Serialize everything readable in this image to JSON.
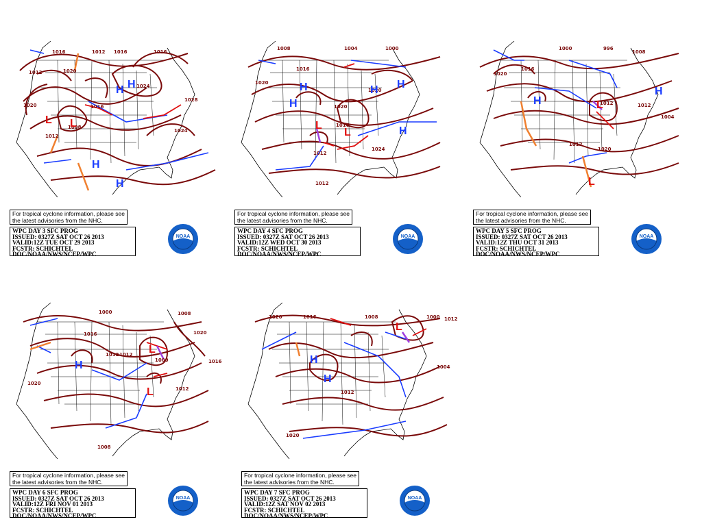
{
  "panels": [
    {
      "notice_line1": "For tropical cyclone information, please see",
      "notice_line2": "the latest advisories from the NHC.",
      "title": "WPC DAY 3 SFC PROG",
      "issued": "ISSUED: 0327Z SAT OCT 26 2013",
      "valid": "VALID:12Z TUE OCT 29 2013",
      "forecaster": "FCSTR: SCHICHTEL",
      "office": "DOC/NOAA/NWS/NCEP/WPC",
      "isobars": [
        "1016",
        "1012",
        "1016",
        "1016",
        "1012",
        "1020",
        "1020",
        "1024",
        "1012",
        "1028",
        "1024",
        "1016",
        "1008"
      ]
    },
    {
      "notice_line1": "For tropical cyclone information, please see",
      "notice_line2": "the latest advisories from the NHC.",
      "title": "WPC DAY 4 SFC PROG",
      "issued": "ISSUED: 0327Z SAT OCT 26 2013",
      "valid": "VALID:12Z WED OCT 30 2013",
      "forecaster": "FCSTR: SCHICHTEL",
      "office": "DOC/NOAA/NWS/NCEP/WPC",
      "isobars": [
        "1008",
        "1004",
        "1000",
        "1020",
        "1016",
        "1020",
        "1016",
        "1012",
        "1012",
        "1024",
        "1020"
      ]
    },
    {
      "notice_line1": "For tropical cyclone information, please see",
      "notice_line2": "the latest advisories from the NHC.",
      "title": "WPC DAY 5 SFC PROG",
      "issued": "ISSUED: 0327Z SAT OCT 26 2013",
      "valid": "VALID:12Z THU OCT 31 2013",
      "forecaster": "FCSTR: SCHICHTEL",
      "office": "DOC/NOAA/NWS/NCEP/WPC",
      "isobars": [
        "1000",
        "996",
        "1008",
        "1020",
        "1016",
        "1012",
        "1020",
        "1004",
        "1012",
        "1012"
      ]
    },
    {
      "notice_line1": "For tropical cyclone information, please see",
      "notice_line2": "the latest advisories from the NHC.",
      "title": "WPC DAY 6 SFC PROG",
      "issued": "ISSUED: 0327Z SAT OCT 26 2013",
      "valid": "VALID:12Z FRI NOV 01 2013",
      "forecaster": "FCSTR: SCHICHTEL",
      "office": "DOC/NOAA/NWS/NCEP/WPC",
      "isobars": [
        "1000",
        "1008",
        "1016",
        "1012",
        "1012",
        "1000",
        "1020",
        "1016",
        "1012",
        "1020",
        "1008"
      ]
    },
    {
      "notice_line1": "For tropical cyclone information, please see",
      "notice_line2": "the latest advisories from the NHC.",
      "title": "WPC DAY 7 SFC PROG",
      "issued": "ISSUED: 0327Z SAT OCT 26 2013",
      "valid": "VALID:12Z SAT NOV 02 2013",
      "forecaster": "FCSTR: SCHICHTEL",
      "office": "DOC/NOAA/NWS/NCEP/WPC",
      "isobars": [
        "1020",
        "1016",
        "1008",
        "1000",
        "1004",
        "1012",
        "1020",
        "1012"
      ]
    }
  ],
  "logo_text": "NOAA",
  "colors": {
    "isobar": "#7a0a0a",
    "cold_front": "#1a3cff",
    "warm_front": "#e01010",
    "trough": "#f08030",
    "occluded": "#a040e0",
    "high": "#1a3cff",
    "low": "#e01010",
    "logo_blue": "#1460c8"
  }
}
